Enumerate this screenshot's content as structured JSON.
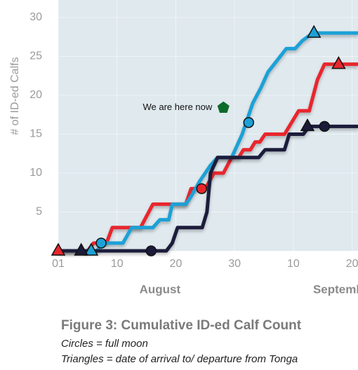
{
  "chart_data": {
    "type": "line",
    "y_label": "# of ID-ed Calfs",
    "xlim": [
      0,
      51
    ],
    "ylim": [
      0,
      32.25
    ],
    "xticks": [
      {
        "value": 0,
        "label": "01"
      },
      10,
      20,
      30,
      {
        "value": 40,
        "label": "10"
      },
      {
        "value": 50,
        "label": "20"
      }
    ],
    "yticks": [
      5,
      10,
      15,
      20,
      25,
      30
    ],
    "grid": true,
    "month_labels": [
      {
        "text": "August",
        "x": 17.3
      },
      {
        "text": "September",
        "x": 48.6
      }
    ],
    "annotation": {
      "text": "We are here now",
      "x": 28.1,
      "y": 18.4,
      "color": "#0b6b2b"
    },
    "series": [
      {
        "color": "#e8262d",
        "x": [
          0,
          5,
          6,
          8.2,
          9.2,
          14,
          16.1,
          19.7,
          21.7,
          22.6,
          25,
          26.5,
          28.1,
          29.5,
          30.7,
          31.5,
          32.7,
          33.5,
          34.3,
          35.2,
          38.5,
          40.9,
          42.7,
          44.1,
          45.3,
          51
        ],
        "values": [
          0,
          0,
          1,
          1,
          3,
          3,
          6,
          6,
          6,
          8,
          8,
          10,
          10,
          12,
          12,
          13,
          13,
          14,
          14,
          15,
          15,
          18,
          18,
          22,
          24,
          24
        ],
        "circles": {
          "x": [
            24.4
          ],
          "y": [
            8
          ]
        },
        "triangles": {
          "x": [
            0,
            47.7
          ],
          "y": [
            0,
            24
          ]
        }
      },
      {
        "color": "#1ba1d6",
        "x": [
          0,
          6.6,
          7.4,
          11,
          12.5,
          16.1,
          17.3,
          18.8,
          19.4,
          21.7,
          22.6,
          24.1,
          25.9,
          27.1,
          29.5,
          31.3,
          33.1,
          34.5,
          35.7,
          38.8,
          40.3,
          41.5,
          43.3,
          51
        ],
        "values": [
          0,
          0,
          1,
          1,
          3,
          3,
          4,
          4,
          6,
          6,
          7,
          9,
          11,
          12,
          12,
          15,
          19,
          21,
          23,
          26,
          26,
          27,
          28,
          28
        ],
        "circles": {
          "x": [
            7.3,
            32.4
          ],
          "y": [
            1,
            16.5
          ]
        },
        "triangles": {
          "x": [
            5.6,
            43.5
          ],
          "y": [
            0,
            28
          ]
        }
      },
      {
        "color": "#1b1b3a",
        "x": [
          0,
          18.4,
          19.4,
          20.3,
          24.5,
          25.3,
          25.9,
          27.1,
          34.1,
          35.2,
          38.5,
          39.3,
          41.7,
          42.7,
          51
        ],
        "values": [
          0,
          0,
          1,
          3,
          3,
          5,
          10,
          12,
          12,
          13,
          13,
          15,
          15,
          16,
          16
        ],
        "circles": {
          "x": [
            15.8,
            45.3
          ],
          "y": [
            0,
            16
          ]
        },
        "triangles": {
          "x": [
            3.9,
            42.4
          ],
          "y": [
            0,
            16
          ]
        }
      }
    ]
  },
  "caption": {
    "title": "Figure 3: Cumulative ID-ed Calf Count",
    "line1": "Circles = full moon",
    "line2": "Triangles = date of arrival to/ departure from Tonga"
  }
}
